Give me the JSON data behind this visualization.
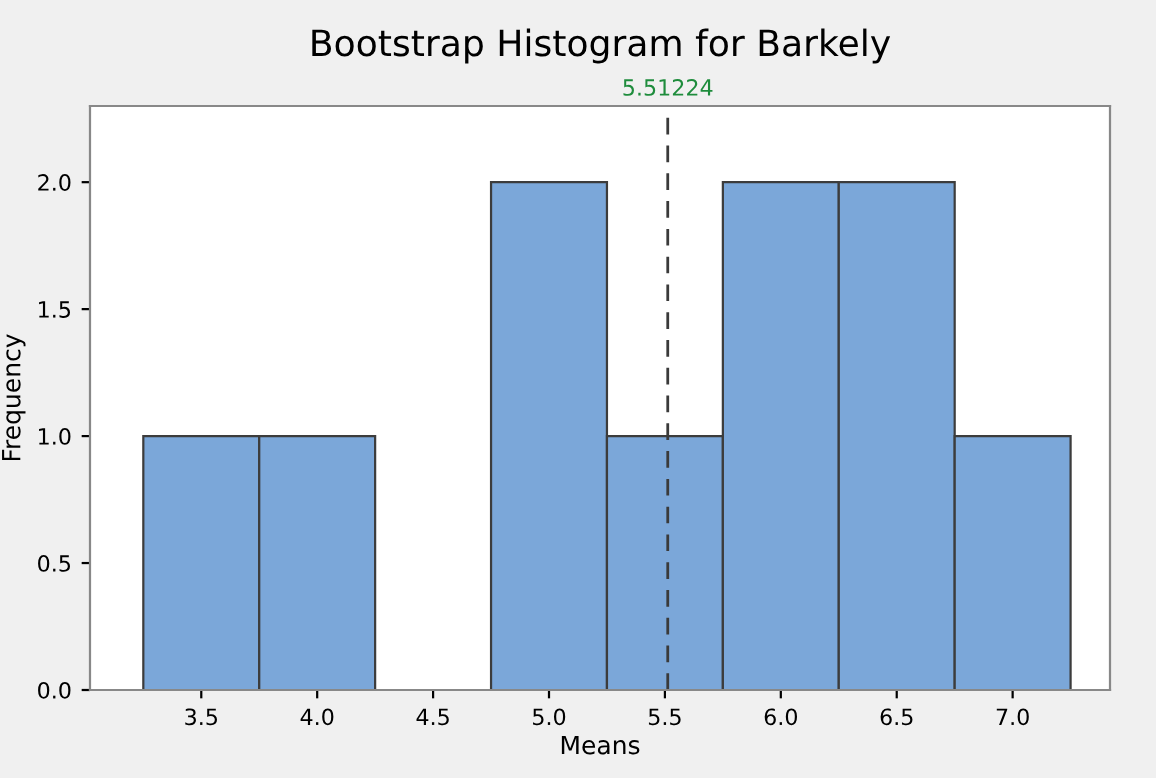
{
  "chart_data": {
    "type": "histogram",
    "title": "Bootstrap Histogram for Barkely",
    "xlabel": "Means",
    "ylabel": "Frequency",
    "bins": [
      3.25,
      3.75,
      4.25,
      4.75,
      5.25,
      5.75,
      6.25,
      6.75,
      7.25
    ],
    "values": [
      1,
      1,
      0,
      2,
      1,
      2,
      2,
      1
    ],
    "color": "#7ba7d9",
    "xlim": [
      3.02,
      7.42
    ],
    "ylim": [
      0,
      2.3
    ],
    "xticks": [
      {
        "value": 3.5,
        "label": "3.5"
      },
      {
        "value": 4.0,
        "label": "4.0"
      },
      {
        "value": 4.5,
        "label": "4.5"
      },
      {
        "value": 5.0,
        "label": "5.0"
      },
      {
        "value": 5.5,
        "label": "5.5"
      },
      {
        "value": 6.0,
        "label": "6.0"
      },
      {
        "value": 6.5,
        "label": "6.5"
      },
      {
        "value": 7.0,
        "label": "7.0"
      }
    ],
    "yticks": [
      {
        "value": 0,
        "label": "0.0"
      },
      {
        "value": 0.5,
        "label": "0.5"
      },
      {
        "value": 1.0,
        "label": "1.0"
      },
      {
        "value": 1.5,
        "label": "1.5"
      },
      {
        "value": 2.0,
        "label": "2.0"
      }
    ],
    "ref_lines": [
      {
        "axis": "x",
        "value": 5.51224,
        "label": "5.51224",
        "color": "#3a3a3a",
        "line_style": "dashed"
      }
    ],
    "grid": false,
    "legend": false
  }
}
